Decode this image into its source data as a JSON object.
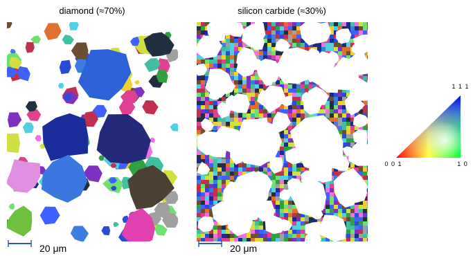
{
  "panels": [
    {
      "title": "diamond (≈70%)",
      "scale_bar": "20 μm"
    },
    {
      "title": "silicon carbide (≈30%)",
      "scale_bar": "20 μm"
    }
  ],
  "legend": {
    "top": "1 1 1",
    "left": "0 0 1",
    "right": "1 0"
  }
}
